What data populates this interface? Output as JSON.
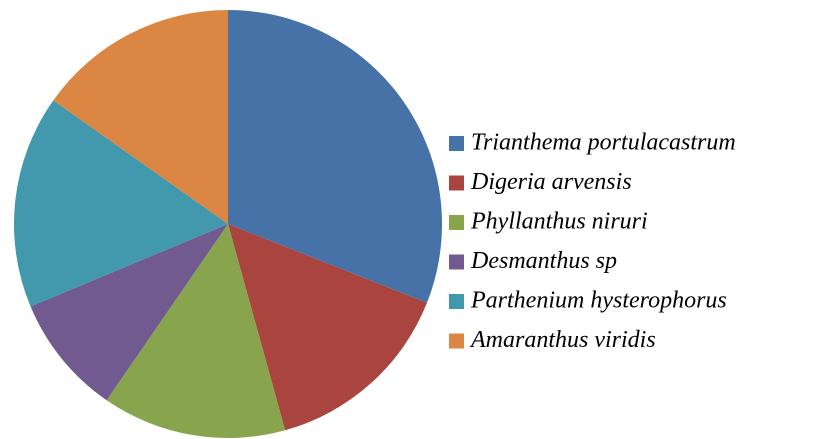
{
  "chart_data": {
    "type": "pie",
    "categories": [
      "Trianthema portulacastrum",
      "Digeria arvensis",
      "Phyllanthus niruri",
      "Desmanthus sp",
      "Parthenium hysterophorus",
      "Amaranthus viridis"
    ],
    "values": [
      31,
      14.7,
      13.9,
      9.1,
      16.1,
      15.2
    ],
    "colors": [
      "#4672a8",
      "#a9443f",
      "#88a54e",
      "#715a8f",
      "#4299ad",
      "#db8642"
    ],
    "legend": "right"
  }
}
